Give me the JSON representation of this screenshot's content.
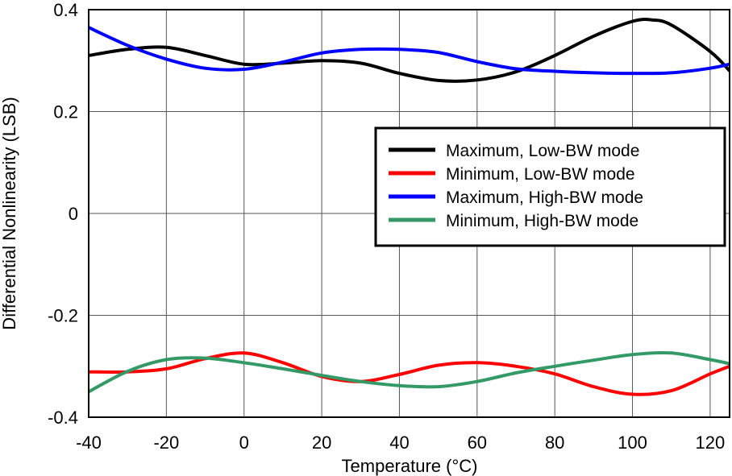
{
  "chart_data": {
    "type": "line",
    "title": "",
    "xlabel": "Temperature (°C)",
    "ylabel": "Differential Nonlinearity (LSB)",
    "xlim": [
      -40,
      125
    ],
    "ylim": [
      -0.4,
      0.4
    ],
    "x_ticks": [
      "-40",
      "-20",
      "0",
      "20",
      "40",
      "60",
      "80",
      "100",
      "120"
    ],
    "y_ticks": [
      "0.4",
      "0.2",
      "0",
      "-0.2",
      "-0.4"
    ],
    "grid": true,
    "legend_position": "right",
    "series": [
      {
        "name": "Maximum, Low-BW mode",
        "color": "#000000",
        "x": [
          -40,
          -30,
          -20,
          -10,
          0,
          10,
          20,
          30,
          40,
          50,
          60,
          70,
          80,
          90,
          100,
          105,
          110,
          120,
          125
        ],
        "y": [
          0.31,
          0.322,
          0.326,
          0.31,
          0.293,
          0.295,
          0.3,
          0.295,
          0.275,
          0.261,
          0.262,
          0.278,
          0.31,
          0.348,
          0.377,
          0.38,
          0.37,
          0.318,
          0.28
        ]
      },
      {
        "name": "Minimum, Low-BW mode",
        "color": "#ff0000",
        "x": [
          -40,
          -30,
          -20,
          -10,
          0,
          10,
          20,
          30,
          40,
          50,
          60,
          70,
          80,
          90,
          100,
          110,
          120,
          125
        ],
        "y": [
          -0.311,
          -0.311,
          -0.305,
          -0.285,
          -0.274,
          -0.293,
          -0.32,
          -0.33,
          -0.316,
          -0.298,
          -0.293,
          -0.3,
          -0.315,
          -0.34,
          -0.355,
          -0.348,
          -0.315,
          -0.3
        ]
      },
      {
        "name": "Maximum, High-BW mode",
        "color": "#0000ff",
        "x": [
          -40,
          -30,
          -20,
          -10,
          0,
          10,
          20,
          30,
          40,
          50,
          60,
          70,
          80,
          90,
          100,
          110,
          120,
          125
        ],
        "y": [
          0.365,
          0.33,
          0.303,
          0.285,
          0.283,
          0.297,
          0.315,
          0.322,
          0.322,
          0.316,
          0.298,
          0.284,
          0.279,
          0.276,
          0.275,
          0.276,
          0.285,
          0.293
        ]
      },
      {
        "name": "Minimum, High-BW mode",
        "color": "#339966",
        "x": [
          -40,
          -30,
          -20,
          -10,
          0,
          10,
          20,
          30,
          40,
          50,
          60,
          70,
          80,
          90,
          100,
          110,
          120,
          125
        ],
        "y": [
          -0.35,
          -0.31,
          -0.287,
          -0.284,
          -0.293,
          -0.305,
          -0.318,
          -0.33,
          -0.338,
          -0.34,
          -0.33,
          -0.313,
          -0.3,
          -0.288,
          -0.277,
          -0.274,
          -0.287,
          -0.295
        ]
      }
    ]
  }
}
